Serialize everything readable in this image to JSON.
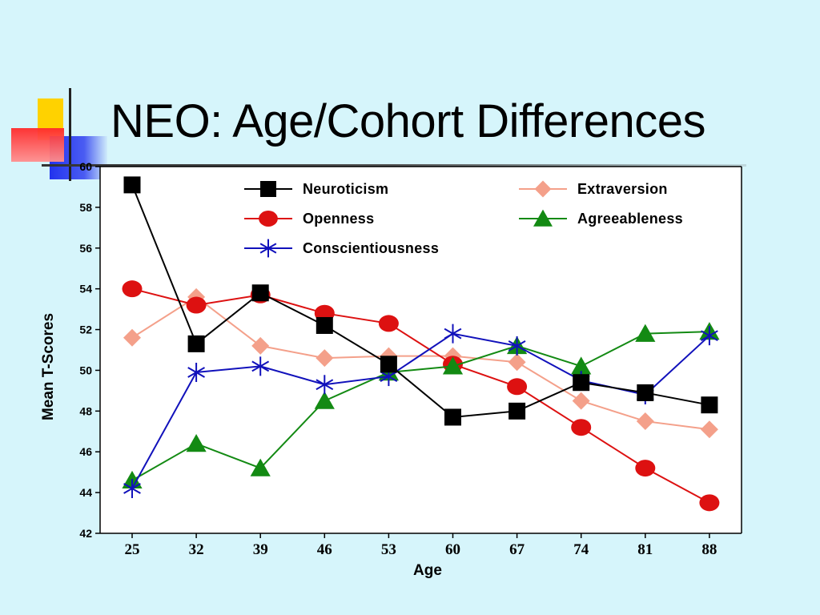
{
  "slide": {
    "title": "NEO: Age/Cohort Differences"
  },
  "colors": {
    "background": "#d6f5fb",
    "deco_yellow": "#ffd200",
    "deco_red": "#ff3030",
    "deco_blue": "#2233ee",
    "Neuroticism": "#000000",
    "Openness": "#dd1111",
    "Conscientiousness": "#1111bb",
    "Extraversion": "#f4a08a",
    "Agreeableness": "#138a13"
  },
  "chart_data": {
    "type": "line",
    "title": "",
    "xlabel": "Age",
    "ylabel": "Mean T-Scores",
    "x": [
      25,
      32,
      39,
      46,
      53,
      60,
      67,
      74,
      81,
      88
    ],
    "ylim": [
      42,
      60
    ],
    "yticks": [
      42,
      44,
      46,
      48,
      50,
      52,
      54,
      56,
      58,
      60
    ],
    "grid": false,
    "legend_position": "top",
    "series": [
      {
        "name": "Neuroticism",
        "marker": "square",
        "values": [
          59.1,
          51.3,
          53.8,
          52.2,
          50.3,
          47.7,
          48.0,
          49.4,
          48.9,
          48.3
        ]
      },
      {
        "name": "Openness",
        "marker": "circle",
        "values": [
          54.0,
          53.2,
          53.7,
          52.8,
          52.3,
          50.3,
          49.2,
          47.2,
          45.2,
          43.5
        ]
      },
      {
        "name": "Conscientiousness",
        "marker": "asterisk",
        "values": [
          44.2,
          49.9,
          50.2,
          49.3,
          49.7,
          51.8,
          51.2,
          49.5,
          48.8,
          51.7
        ]
      },
      {
        "name": "Extraversion",
        "marker": "diamond",
        "values": [
          51.6,
          53.6,
          51.2,
          50.6,
          50.7,
          50.7,
          50.4,
          48.5,
          47.5,
          47.1
        ]
      },
      {
        "name": "Agreeableness",
        "marker": "triangle",
        "values": [
          44.6,
          46.4,
          45.2,
          48.5,
          49.9,
          50.2,
          51.2,
          50.2,
          51.8,
          51.9
        ]
      }
    ]
  }
}
